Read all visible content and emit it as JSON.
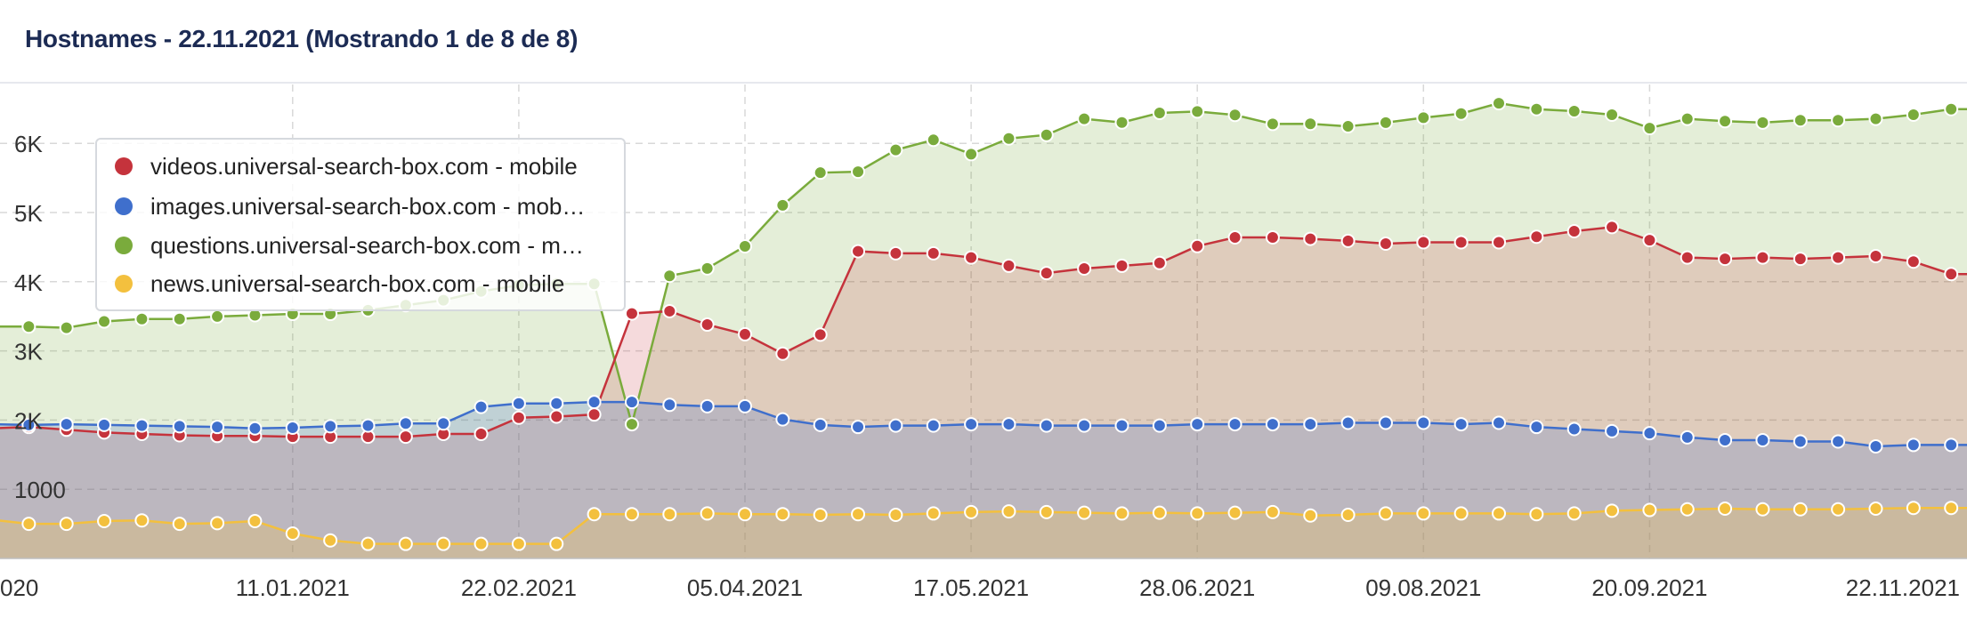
{
  "title": "Hostnames - 22.11.2021 (Mostrando 1 de 8 de 8)",
  "legend_labels": [
    "videos.universal-search-box.com - mobile",
    "images.universal-search-box.com - mob…",
    "questions.universal-search-box.com - m…",
    "news.universal-search-box.com - mobile"
  ],
  "chart_data": {
    "type": "area",
    "x_tick_labels": [
      "020",
      "11.01.2021",
      "22.02.2021",
      "05.04.2021",
      "17.05.2021",
      "28.06.2021",
      "09.08.2021",
      "20.09.2021",
      "22.11.2021"
    ],
    "y_tick_labels": [
      "1000",
      "2K",
      "3K",
      "4K",
      "5K",
      "6K"
    ],
    "y_ticks": [
      1000,
      2000,
      3000,
      4000,
      5000,
      6000
    ],
    "ylim": [
      0,
      6700
    ],
    "grid": true,
    "legend_position": "top-left",
    "x_dates": [
      "2020-11-16",
      "2020-11-23",
      "2020-11-30",
      "2020-12-07",
      "2020-12-14",
      "2020-12-21",
      "2020-12-28",
      "2021-01-04",
      "2021-01-11",
      "2021-01-18",
      "2021-01-25",
      "2021-02-01",
      "2021-02-08",
      "2021-02-15",
      "2021-02-22",
      "2021-03-01",
      "2021-03-08",
      "2021-03-15",
      "2021-03-22",
      "2021-03-29",
      "2021-04-05",
      "2021-04-12",
      "2021-04-19",
      "2021-04-26",
      "2021-05-03",
      "2021-05-10",
      "2021-05-17",
      "2021-05-24",
      "2021-05-31",
      "2021-06-07",
      "2021-06-14",
      "2021-06-21",
      "2021-06-28",
      "2021-07-05",
      "2021-07-12",
      "2021-07-19",
      "2021-07-26",
      "2021-08-02",
      "2021-08-09",
      "2021-08-16",
      "2021-08-23",
      "2021-08-30",
      "2021-09-06",
      "2021-09-13",
      "2021-09-20",
      "2021-09-27",
      "2021-10-04",
      "2021-10-11",
      "2021-10-18",
      "2021-10-25",
      "2021-11-01",
      "2021-11-08",
      "2021-11-15",
      "2021-11-22"
    ],
    "series": [
      {
        "name": "questions.universal-search-box.com - mobile",
        "color": "#7aab3c",
        "values": [
          3352,
          3352,
          3334,
          3425,
          3461,
          3461,
          3497,
          3516,
          3534,
          3534,
          3588,
          3660,
          3732,
          3860,
          3950,
          3968,
          3968,
          1940,
          4084,
          4192,
          4512,
          5104,
          5576,
          5590,
          5904,
          6050,
          5844,
          6070,
          6122,
          6354,
          6302,
          6440,
          6460,
          6410,
          6280,
          6282,
          6246,
          6300,
          6370,
          6430,
          6580,
          6494,
          6466,
          6414,
          6220,
          6354,
          6320,
          6300,
          6334,
          6334,
          6354,
          6414,
          6494,
          6494
        ]
      },
      {
        "name": "videos.universal-search-box.com - mobile",
        "color": "#c5333c",
        "values": [
          1880,
          1900,
          1860,
          1820,
          1800,
          1780,
          1770,
          1770,
          1760,
          1760,
          1760,
          1760,
          1800,
          1800,
          2034,
          2050,
          2080,
          3540,
          3574,
          3380,
          3240,
          2960,
          3234,
          4440,
          4410,
          4410,
          4350,
          4230,
          4124,
          4190,
          4230,
          4270,
          4514,
          4640,
          4640,
          4620,
          4590,
          4550,
          4570,
          4570,
          4570,
          4650,
          4730,
          4790,
          4600,
          4350,
          4330,
          4350,
          4330,
          4350,
          4370,
          4290,
          4110,
          4110
        ]
      },
      {
        "name": "images.universal-search-box.com - mobile",
        "color": "#3f6fcc",
        "values": [
          1940,
          1930,
          1940,
          1930,
          1920,
          1910,
          1900,
          1880,
          1890,
          1910,
          1920,
          1950,
          1950,
          2190,
          2240,
          2240,
          2260,
          2260,
          2220,
          2200,
          2200,
          2010,
          1930,
          1900,
          1920,
          1920,
          1940,
          1940,
          1920,
          1920,
          1920,
          1920,
          1940,
          1940,
          1940,
          1940,
          1960,
          1960,
          1960,
          1940,
          1960,
          1900,
          1870,
          1840,
          1810,
          1750,
          1710,
          1710,
          1690,
          1690,
          1620,
          1640,
          1640,
          1640
        ]
      },
      {
        "name": "news.universal-search-box.com - mobile",
        "color": "#f3c03e",
        "values": [
          560,
          500,
          500,
          540,
          550,
          500,
          510,
          540,
          360,
          260,
          210,
          210,
          210,
          210,
          210,
          210,
          640,
          640,
          640,
          650,
          640,
          640,
          630,
          640,
          630,
          650,
          670,
          680,
          670,
          660,
          650,
          660,
          650,
          660,
          670,
          620,
          630,
          650,
          650,
          650,
          650,
          640,
          650,
          690,
          700,
          710,
          720,
          710,
          710,
          710,
          720,
          730,
          730,
          730
        ]
      }
    ]
  }
}
